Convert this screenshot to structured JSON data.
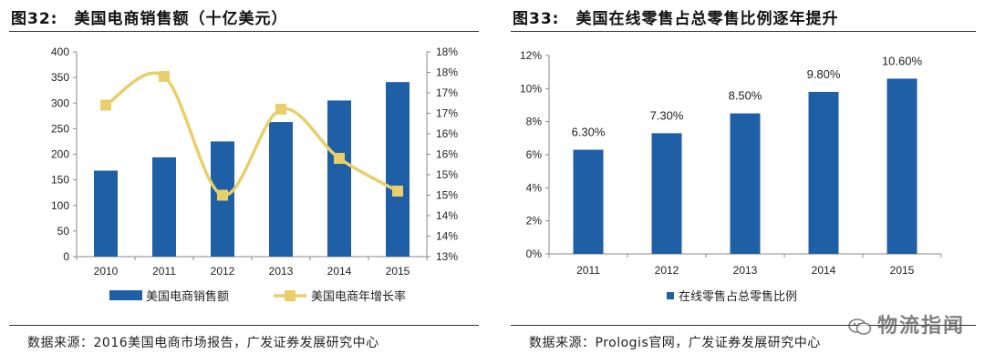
{
  "left": {
    "title": "图32:　美国电商销售额（十亿美元）",
    "source": "数据来源：2016美国电商市场报告，广发证券发展研究中心",
    "legend": {
      "bar": "美国电商销售额",
      "line": "美国电商年增长率"
    },
    "colors": {
      "bar": "#1f5fa6",
      "line": "#e8cf6a",
      "axis": "#888888"
    }
  },
  "right": {
    "title": "图33:　美国在线零售占总零售比例逐年提升",
    "source": "数据来源：Prologis官网，广发证券发展研究中心",
    "legend": {
      "bar": "在线零售占总零售比例"
    },
    "colors": {
      "bar": "#1f5fa6",
      "axis": "#888888"
    }
  },
  "watermark": {
    "text": "物流指闻",
    "icon": "wechat-icon"
  },
  "chart_data": [
    {
      "type": "bar+line",
      "title": "美国电商销售额（十亿美元）",
      "categories": [
        "2010",
        "2011",
        "2012",
        "2013",
        "2014",
        "2015"
      ],
      "series": [
        {
          "name": "美国电商销售额",
          "kind": "bar",
          "axis": "left",
          "values": [
            168,
            194,
            225,
            263,
            305,
            341
          ]
        },
        {
          "name": "美国电商年增长率",
          "kind": "line",
          "axis": "right",
          "values": [
            0.167,
            0.174,
            0.145,
            0.166,
            0.154,
            0.146
          ]
        }
      ],
      "y_left": {
        "min": 0,
        "max": 400,
        "ticks": [
          0,
          50,
          100,
          150,
          200,
          250,
          300,
          350,
          400
        ]
      },
      "y_right": {
        "min": 0.13,
        "max": 0.18,
        "ticks": [
          0.13,
          0.135,
          0.14,
          0.145,
          0.15,
          0.155,
          0.16,
          0.165,
          0.17,
          0.175,
          0.18
        ],
        "tick_labels": [
          "13%",
          "14%",
          "14%",
          "15%",
          "15%",
          "16%",
          "16%",
          "17%",
          "17%",
          "18%",
          "18%"
        ]
      },
      "legend_position": "bottom"
    },
    {
      "type": "bar",
      "title": "美国在线零售占总零售比例逐年提升",
      "categories": [
        "2011",
        "2012",
        "2013",
        "2014",
        "2015"
      ],
      "values": [
        0.063,
        0.073,
        0.085,
        0.098,
        0.106
      ],
      "data_labels": [
        "6.30%",
        "7.30%",
        "8.50%",
        "9.80%",
        "10.60%"
      ],
      "y": {
        "min": 0,
        "max": 0.12,
        "ticks": [
          0,
          0.02,
          0.04,
          0.06,
          0.08,
          0.1,
          0.12
        ],
        "tick_labels": [
          "0%",
          "2%",
          "4%",
          "6%",
          "8%",
          "10%",
          "12%"
        ]
      },
      "legend": "在线零售占总零售比例",
      "legend_position": "bottom"
    }
  ]
}
